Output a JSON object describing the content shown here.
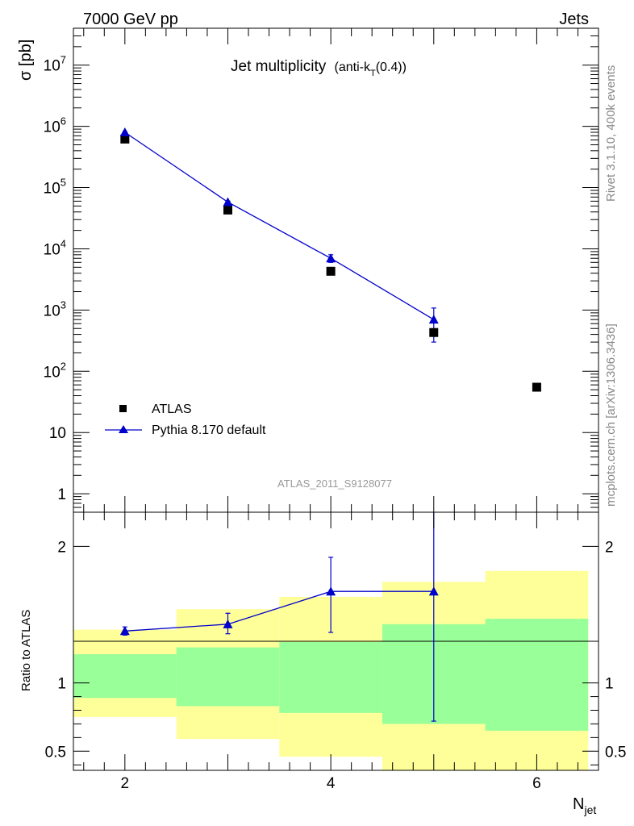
{
  "header": {
    "left": "7000 GeV pp",
    "right": "Jets"
  },
  "side_labels": {
    "upper": "Rivet 3.1.10,  400k events",
    "lower": "mcplots.cern.ch [arXiv:1306.3436]"
  },
  "analysis_label": "ATLAS_2011_S9128077",
  "colors": {
    "mc": "#0000cc",
    "data": "#000000",
    "band_outer": "#ffff99",
    "band_inner": "#99ff99"
  },
  "chart_data": [
    {
      "type": "scatter",
      "panel": "main",
      "title": "Jet multiplicity",
      "title_suffix": "(anti-k",
      "title_sub": "T",
      "title_suffix2": "(0.4))",
      "ylabel": "σ [pb]",
      "yscale": "log",
      "ylim": [
        0.5,
        40000000
      ],
      "xlim": [
        1.5,
        6.6
      ],
      "y_ticks": [
        {
          "value": 1,
          "base": "1",
          "exp": ""
        },
        {
          "value": 10,
          "base": "10",
          "exp": ""
        },
        {
          "value": 100,
          "base": "10",
          "exp": "2"
        },
        {
          "value": 1000,
          "base": "10",
          "exp": "3"
        },
        {
          "value": 10000,
          "base": "10",
          "exp": "4"
        },
        {
          "value": 100000,
          "base": "10",
          "exp": "5"
        },
        {
          "value": 1000000,
          "base": "10",
          "exp": "6"
        },
        {
          "value": 10000000,
          "base": "10",
          "exp": "7"
        }
      ],
      "series": [
        {
          "name": "ATLAS",
          "marker": "square",
          "x": [
            2,
            3,
            4,
            5,
            6
          ],
          "y": [
            620000,
            43000,
            4300,
            430,
            55
          ]
        },
        {
          "name": "Pythia 8.170 default",
          "marker": "triangle",
          "line": true,
          "x": [
            2,
            3,
            4,
            5
          ],
          "y": [
            800000,
            58000,
            7000,
            700
          ],
          "yerr_low": [
            785000,
            56000,
            6000,
            300
          ],
          "yerr_high": [
            815000,
            60000,
            8000,
            1080
          ]
        }
      ],
      "legend": {
        "position": "bottom-left",
        "entries": [
          "ATLAS",
          "Pythia 8.170 default"
        ]
      }
    },
    {
      "type": "line",
      "panel": "ratio",
      "ylabel": "Ratio to ATLAS",
      "xlabel": "N",
      "xlabel_sub": "jet",
      "ylim": [
        0.36,
        2.25
      ],
      "xlim": [
        1.5,
        6.6
      ],
      "x_ticks": [
        "2",
        "4",
        "6"
      ],
      "x_tick_values": [
        2,
        4,
        6
      ],
      "y_ticks": [
        {
          "value": 0.5,
          "label": "0.5"
        },
        {
          "value": 1,
          "label": "1"
        },
        {
          "value": 2,
          "label": "2"
        }
      ],
      "bands": [
        {
          "xlo": 1.5,
          "xhi": 2.5,
          "outer": [
            0.75,
            1.39
          ],
          "inner": [
            0.89,
            1.21
          ]
        },
        {
          "xlo": 2.5,
          "xhi": 3.5,
          "outer": [
            0.59,
            1.54
          ],
          "inner": [
            0.83,
            1.26
          ]
        },
        {
          "xlo": 3.5,
          "xhi": 4.5,
          "outer": [
            0.46,
            1.63
          ],
          "inner": [
            0.78,
            1.3
          ]
        },
        {
          "xlo": 4.5,
          "xhi": 5.5,
          "outer": [
            0.3,
            1.74
          ],
          "inner": [
            0.7,
            1.43
          ]
        },
        {
          "xlo": 5.5,
          "xhi": 6.5,
          "outer": [
            0.3,
            1.82
          ],
          "inner": [
            0.65,
            1.47
          ]
        }
      ],
      "series": [
        {
          "name": "Pythia 8.170 default",
          "x": [
            2,
            3,
            4,
            5
          ],
          "y": [
            1.38,
            1.43,
            1.67,
            1.67
          ],
          "yerr_low": [
            1.35,
            1.36,
            1.37,
            0.72
          ],
          "yerr_high": [
            1.41,
            1.51,
            1.92,
            2.3
          ]
        }
      ]
    }
  ]
}
